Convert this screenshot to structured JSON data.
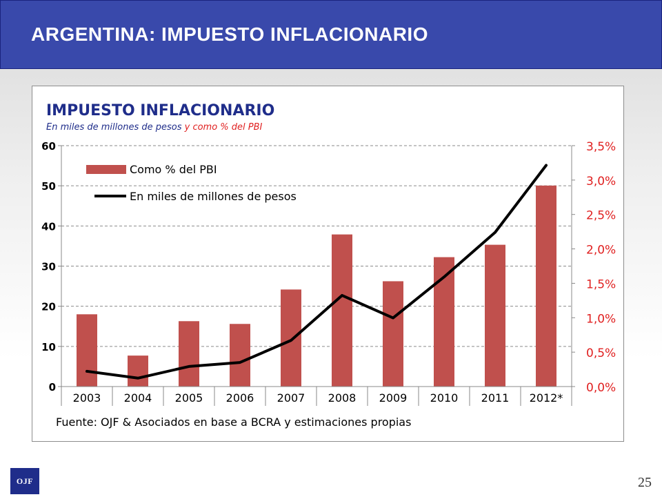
{
  "header": {
    "title": "ARGENTINA:  IMPUESTO INFLACIONARIO"
  },
  "logo": {
    "text": "OJF"
  },
  "page_number": "25",
  "colors": {
    "banner": "#3949ab",
    "bar": "#c0504d",
    "line": "#000000",
    "right_axis": "#e02020",
    "subtitle_blue": "#1f2d8a"
  },
  "chart_data": {
    "type": "bar",
    "title": "IMPUESTO INFLACIONARIO",
    "subtitle_part1": "En miles de millones de pesos",
    "subtitle_part2": " y como % del PBI",
    "source": "Fuente: OJF & Asociados en base a BCRA y estimaciones propias",
    "categories": [
      "2003",
      "2004",
      "2005",
      "2006",
      "2007",
      "2008",
      "2009",
      "2010",
      "2011",
      "2012*"
    ],
    "series": [
      {
        "name": "Como % del PBI",
        "type": "bar",
        "axis": "right",
        "values": [
          1.05,
          0.45,
          0.95,
          0.91,
          1.41,
          2.21,
          1.53,
          1.88,
          2.06,
          2.92
        ]
      },
      {
        "name": "En miles de millones de pesos",
        "type": "line",
        "axis": "left",
        "values": [
          3.8,
          2.1,
          5.0,
          6.0,
          11.5,
          22.7,
          17.1,
          27.3,
          38.4,
          55.1
        ]
      }
    ],
    "left_axis": {
      "min": 0,
      "max": 60,
      "ticks": [
        "0",
        "10",
        "20",
        "30",
        "40",
        "50",
        "60"
      ]
    },
    "right_axis": {
      "min": 0,
      "max": 3.5,
      "ticks": [
        "0,0%",
        "0,5%",
        "1,0%",
        "1,5%",
        "2,0%",
        "2,5%",
        "3,0%",
        "3,5%"
      ]
    },
    "grid": true,
    "legend_position": "top-left"
  }
}
